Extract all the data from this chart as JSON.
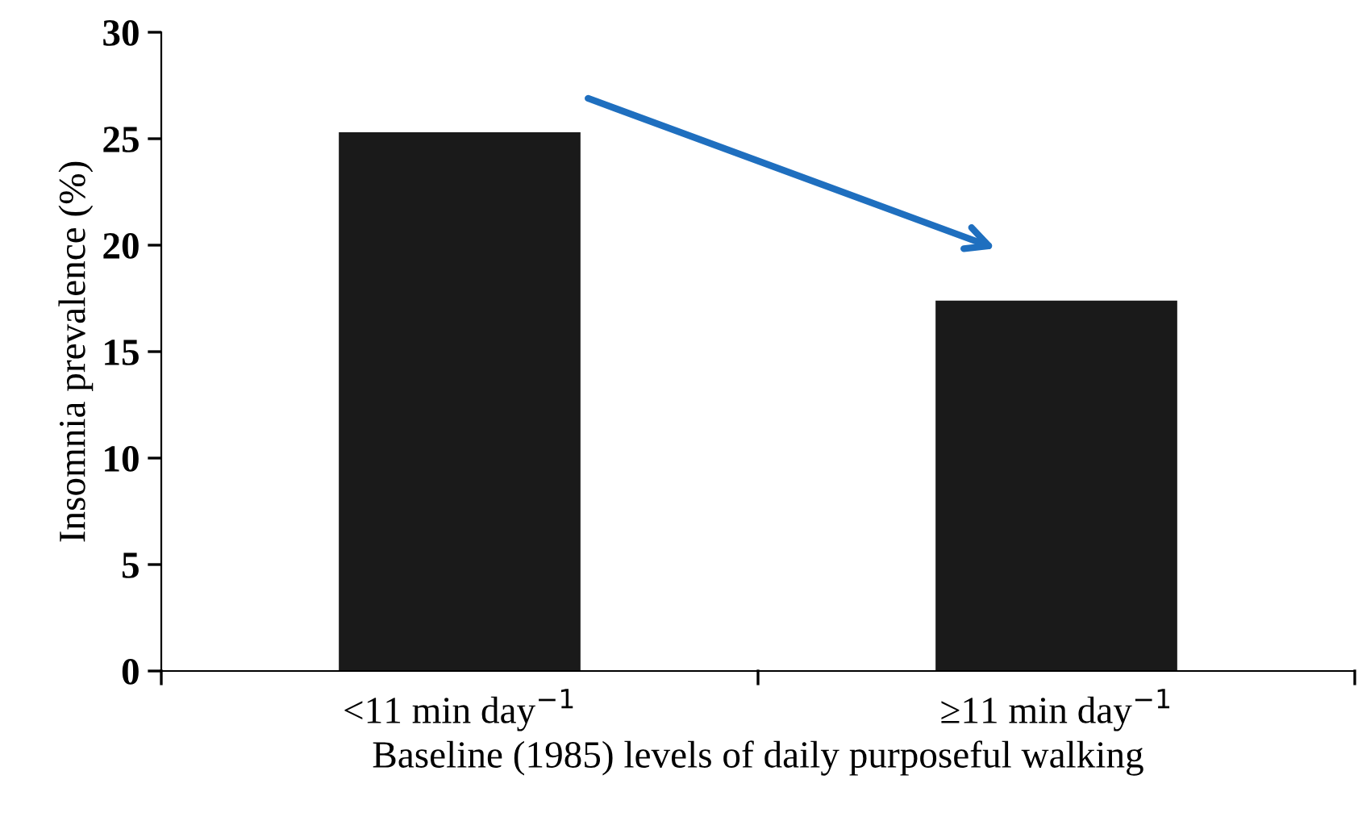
{
  "chart_data": {
    "type": "bar",
    "xlabel": "Baseline (1985) levels of daily purposeful walking",
    "ylabel": "Insomnia prevalence (%)",
    "categories": [
      "<11 min day$^{−1}$",
      "≥11 min day$^{−1}$"
    ],
    "values": [
      25.3,
      17.4
    ],
    "color": "#1a1a1a",
    "ylim": [
      0,
      30
    ],
    "yticks": [
      0,
      5,
      10,
      15,
      20,
      25,
      30
    ],
    "grid": false,
    "legend": false
  }
}
